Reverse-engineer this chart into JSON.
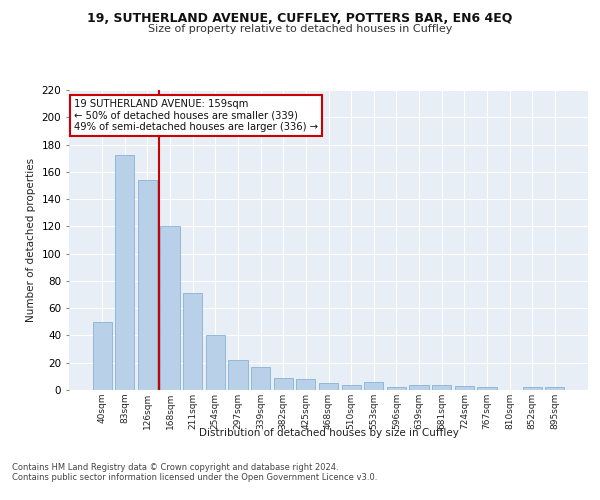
{
  "title1": "19, SUTHERLAND AVENUE, CUFFLEY, POTTERS BAR, EN6 4EQ",
  "title2": "Size of property relative to detached houses in Cuffley",
  "xlabel": "Distribution of detached houses by size in Cuffley",
  "ylabel": "Number of detached properties",
  "categories": [
    "40sqm",
    "83sqm",
    "126sqm",
    "168sqm",
    "211sqm",
    "254sqm",
    "297sqm",
    "339sqm",
    "382sqm",
    "425sqm",
    "468sqm",
    "510sqm",
    "553sqm",
    "596sqm",
    "639sqm",
    "681sqm",
    "724sqm",
    "767sqm",
    "810sqm",
    "852sqm",
    "895sqm"
  ],
  "values": [
    50,
    172,
    154,
    120,
    71,
    40,
    22,
    17,
    9,
    8,
    5,
    4,
    6,
    2,
    4,
    4,
    3,
    2,
    0,
    2,
    2
  ],
  "bar_color": "#b8d0e8",
  "bar_edge_color": "#7aaace",
  "bg_color": "#e8eef5",
  "grid_color": "#ffffff",
  "vline_x": 2.5,
  "vline_color": "#cc0000",
  "annotation_text": "19 SUTHERLAND AVENUE: 159sqm\n← 50% of detached houses are smaller (339)\n49% of semi-detached houses are larger (336) →",
  "annotation_box_facecolor": "#ffffff",
  "annotation_box_edge": "#cc0000",
  "footer1": "Contains HM Land Registry data © Crown copyright and database right 2024.",
  "footer2": "Contains public sector information licensed under the Open Government Licence v3.0.",
  "ylim": [
    0,
    220
  ],
  "yticks": [
    0,
    20,
    40,
    60,
    80,
    100,
    120,
    140,
    160,
    180,
    200,
    220
  ],
  "fig_bg": "#ffffff"
}
